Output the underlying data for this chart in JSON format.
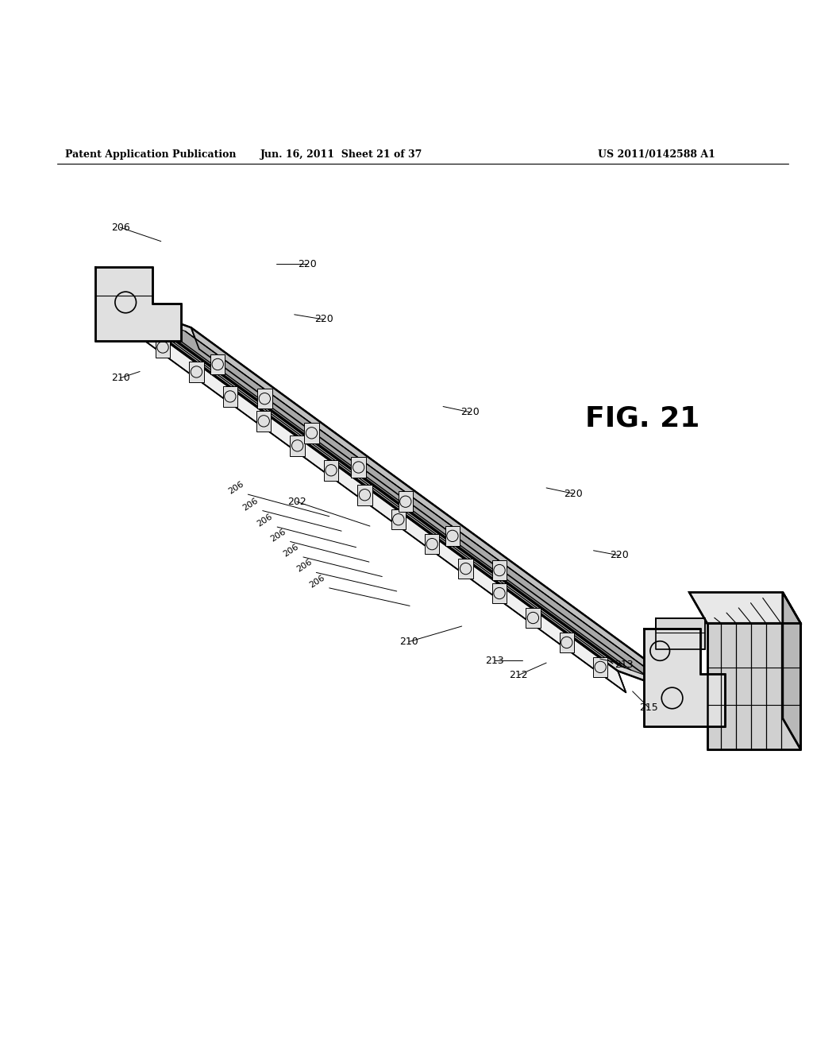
{
  "header_left": "Patent Application Publication",
  "header_mid": "Jun. 16, 2011  Sheet 21 of 37",
  "header_right": "US 2011/0142588 A1",
  "fig_label": "FIG. 21",
  "bg_color": "#ffffff",
  "line_color": "#000000"
}
